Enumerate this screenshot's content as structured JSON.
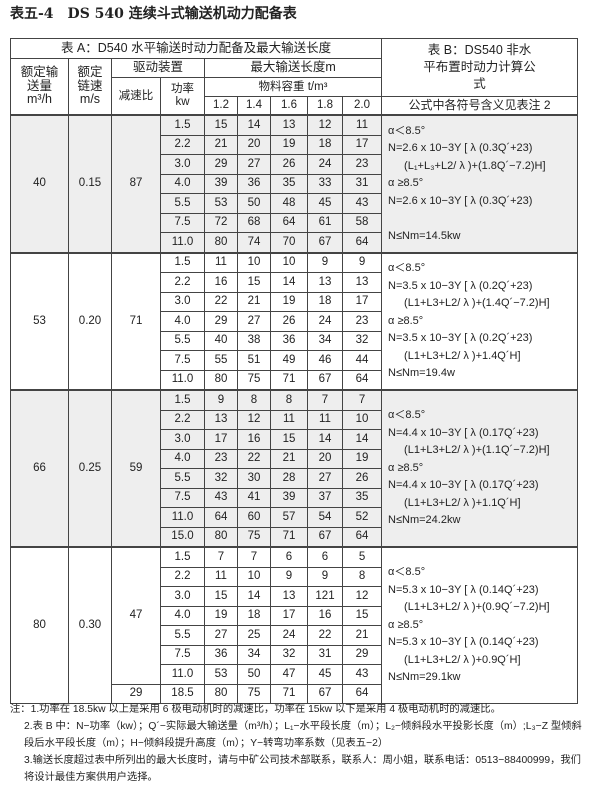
{
  "title": "表五-4　DS 540 连续斗式输送机动力配备表",
  "header": {
    "table_a": "表 A：D540 水平输送时动力配备及最大输送长度",
    "table_b": "表 B：DS540 非水平布置时动力计算公式",
    "rated_capacity": "额定输送量 m³/h",
    "rated_speed": "额定链速 m/s",
    "drive": "驱动装置",
    "max_length": "最大输送长度m",
    "density": "物料容重 t/m³",
    "ratio": "减速比",
    "power": "功率 kw",
    "densities": [
      "1.2",
      "1.4",
      "1.6",
      "1.8",
      "2.0"
    ],
    "formula_note": "公式中各符号含义见表注 2"
  },
  "groups": [
    {
      "capacity": "40",
      "speed": "0.15",
      "gray": true,
      "ratios": [
        {
          "value": "87",
          "span": 7
        }
      ],
      "rows": [
        [
          "1.5",
          "15",
          "14",
          "13",
          "12",
          "11"
        ],
        [
          "2.2",
          "21",
          "20",
          "19",
          "18",
          "17"
        ],
        [
          "3.0",
          "29",
          "27",
          "26",
          "24",
          "23"
        ],
        [
          "4.0",
          "39",
          "36",
          "35",
          "33",
          "31"
        ],
        [
          "5.5",
          "53",
          "50",
          "48",
          "45",
          "43"
        ],
        [
          "7.5",
          "72",
          "68",
          "64",
          "61",
          "58"
        ],
        [
          "11.0",
          "80",
          "74",
          "70",
          "67",
          "64"
        ]
      ],
      "formula": [
        "α＜8.5°",
        "N=2.6 x 10−3Y [ λ (0.3Q´+23)",
        "(L₁+L₃+L2/ λ )+(1.8Q´−7.2)H]",
        "α ≥8.5°",
        "N=2.6 x 10−3Y [ λ (0.3Q´+23)",
        "",
        "N≤Nm=14.5kw"
      ]
    },
    {
      "capacity": "53",
      "speed": "0.20",
      "gray": false,
      "ratios": [
        {
          "value": "71",
          "span": 7
        }
      ],
      "rows": [
        [
          "1.5",
          "11",
          "10",
          "10",
          "9",
          "9"
        ],
        [
          "2.2",
          "16",
          "15",
          "14",
          "13",
          "13"
        ],
        [
          "3.0",
          "22",
          "21",
          "19",
          "18",
          "17"
        ],
        [
          "4.0",
          "29",
          "27",
          "26",
          "24",
          "23"
        ],
        [
          "5.5",
          "40",
          "38",
          "36",
          "34",
          "32"
        ],
        [
          "7.5",
          "55",
          "51",
          "49",
          "46",
          "44"
        ],
        [
          "11.0",
          "80",
          "75",
          "71",
          "67",
          "64"
        ]
      ],
      "formula": [
        "α＜8.5°",
        "N=3.5 x 10−3Y [ λ (0.2Q´+23)",
        "(L1+L3+L2/ λ )+(1.4Q´−7.2)H]",
        "α ≥8.5°",
        "N=3.5 x 10−3Y [ λ (0.2Q´+23)",
        "(L1+L3+L2/ λ )+1.4Q´H]",
        "N≤Nm=19.4w"
      ]
    },
    {
      "capacity": "66",
      "speed": "0.25",
      "gray": true,
      "ratios": [
        {
          "value": "59",
          "span": 8
        }
      ],
      "rows": [
        [
          "1.5",
          "9",
          "8",
          "8",
          "7",
          "7"
        ],
        [
          "2.2",
          "13",
          "12",
          "11",
          "11",
          "10"
        ],
        [
          "3.0",
          "17",
          "16",
          "15",
          "14",
          "14"
        ],
        [
          "4.0",
          "23",
          "22",
          "21",
          "20",
          "19"
        ],
        [
          "5.5",
          "32",
          "30",
          "28",
          "27",
          "26"
        ],
        [
          "7.5",
          "43",
          "41",
          "39",
          "37",
          "35"
        ],
        [
          "11.0",
          "64",
          "60",
          "57",
          "54",
          "52"
        ],
        [
          "15.0",
          "80",
          "75",
          "71",
          "67",
          "64"
        ]
      ],
      "formula": [
        "α＜8.5°",
        "N=4.4 x 10−3Y [ λ (0.17Q´+23)",
        "(L1+L3+L2/ λ )+(1.1Q´−7.2)H]",
        "α ≥8.5°",
        "N=4.4 x 10−3Y [ λ (0.17Q´+23)",
        "(L1+L3+L2/ λ )+1.1Q´H]",
        "N≤Nm=24.2kw"
      ]
    },
    {
      "capacity": "80",
      "speed": "0.30",
      "gray": false,
      "ratios": [
        {
          "value": "47",
          "span": 7
        },
        {
          "value": "29",
          "span": 1
        }
      ],
      "rows": [
        [
          "1.5",
          "7",
          "7",
          "6",
          "6",
          "5"
        ],
        [
          "2.2",
          "11",
          "10",
          "9",
          "9",
          "8"
        ],
        [
          "3.0",
          "15",
          "14",
          "13",
          "121",
          "12"
        ],
        [
          "4.0",
          "19",
          "18",
          "17",
          "16",
          "15"
        ],
        [
          "5.5",
          "27",
          "25",
          "24",
          "22",
          "21"
        ],
        [
          "7.5",
          "36",
          "34",
          "32",
          "31",
          "29"
        ],
        [
          "11.0",
          "53",
          "50",
          "47",
          "45",
          "43"
        ],
        [
          "18.5",
          "80",
          "75",
          "71",
          "67",
          "64"
        ]
      ],
      "formula": [
        "α＜8.5°",
        "N=5.3 x 10−3Y [ λ (0.14Q´+23)",
        "(L1+L3+L2/ λ )+(0.9Q´−7.2)H]",
        "α ≥8.5°",
        "N=5.3 x 10−3Y [ λ (0.14Q´+23)",
        "(L1+L3+L2/ λ )+0.9Q´H]",
        "N≤Nm=29.1kw"
      ]
    }
  ],
  "notes": [
    "注：1.功率在 18.5kw 以上是采用 6 极电动机时的减速比，功率在 15kw 以下是采用 4 极电动机时的减速比。",
    "2.表 B 中：N−功率（kw）；Q´−实际最大输送量（m³/h）；L₁−水平段长度（m）；L₂−倾斜段水平投影长度（m）;L₃−Z 型倾斜段后水平段长度（m）；H−倾斜段提升高度（m）；Y−转弯功率系数（见表五−2）",
    "3.输送长度超过表中所列出的最大长度时，请与中矿公司技术部联系，联系人：周小姐，联系电话：0513−88400999，我们将设计最佳方案供用户选择。"
  ]
}
